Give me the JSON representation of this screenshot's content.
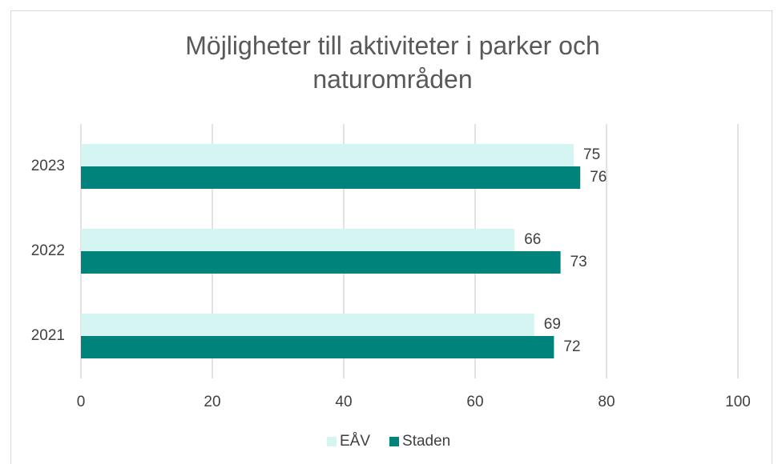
{
  "chart_data": {
    "type": "hbar",
    "title": "Möjligheter till aktiviteter i parker och naturområden",
    "categories": [
      "2021",
      "2022",
      "2023"
    ],
    "series": [
      {
        "name": "EÅV",
        "color": "#d5f5f3",
        "values": [
          69,
          66,
          75
        ]
      },
      {
        "name": "Staden",
        "color": "#00837a",
        "values": [
          72,
          73,
          76
        ]
      }
    ],
    "xlim": [
      0,
      100
    ],
    "xticks": [
      0,
      20,
      40,
      60,
      80,
      100
    ],
    "grid": true,
    "legend": "bottom"
  }
}
